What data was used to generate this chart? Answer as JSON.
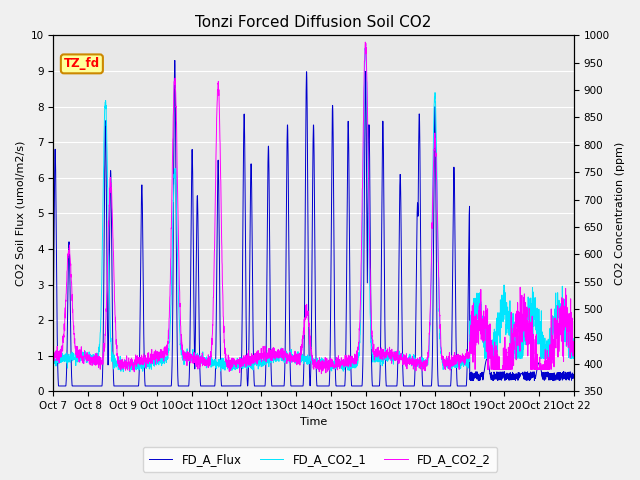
{
  "title": "Tonzi Forced Diffusion Soil CO2",
  "xlabel": "Time",
  "ylabel_left": "CO2 Soil Flux (umol/m2/s)",
  "ylabel_right": "CO2 Concentration (ppm)",
  "ylim_left": [
    0.0,
    10.0
  ],
  "ylim_right": [
    350,
    1000
  ],
  "xtick_labels": [
    "Oct 7",
    "Oct 8",
    "Oct 9",
    "Oct 10",
    "Oct 11",
    "Oct 12",
    "Oct 13",
    "Oct 14",
    "Oct 15",
    "Oct 16",
    "Oct 17",
    "Oct 18",
    "Oct 19",
    "Oct 20",
    "Oct 21",
    "Oct 22"
  ],
  "legend_labels": [
    "FD_A_Flux",
    "FD_A_CO2_1",
    "FD_A_CO2_2"
  ],
  "line_colors": [
    "#0000cd",
    "#00e5ff",
    "#ff00ff"
  ],
  "tag_text": "TZ_fd",
  "tag_bg": "#ffff99",
  "tag_border": "#cc8800",
  "plot_bg": "#e8e8e8",
  "fig_bg": "#f0f0f0",
  "grid_color": "#ffffff",
  "title_fontsize": 11,
  "axis_fontsize": 8,
  "tick_fontsize": 7.5
}
